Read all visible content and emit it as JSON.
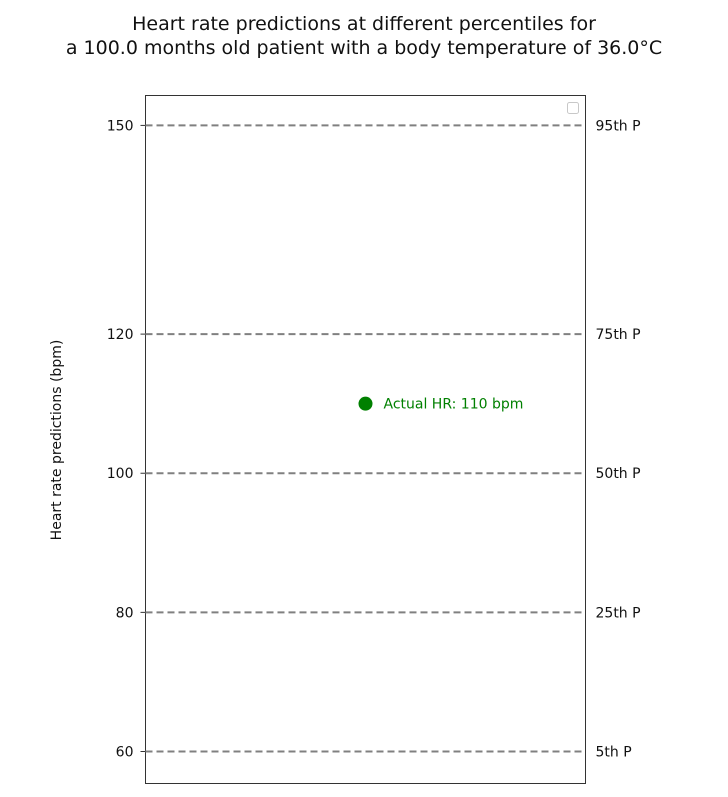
{
  "chart_data": {
    "type": "scatter",
    "title_line1": "Heart rate predictions at different percentiles for",
    "title_line2": "a 100.0 months old patient with a body temperature of 36.0°C",
    "ylabel": "Heart rate predictions (bpm)",
    "xlabel": "",
    "ylim": [
      55.4,
      154.3
    ],
    "grid": false,
    "yticks": [
      60,
      80,
      100,
      120,
      150
    ],
    "percentile_lines": [
      {
        "label": "5th P",
        "value": 60
      },
      {
        "label": "25th P",
        "value": 80
      },
      {
        "label": "50th P",
        "value": 100
      },
      {
        "label": "75th P",
        "value": 120
      },
      {
        "label": "95th P",
        "value": 150
      }
    ],
    "actual_point": {
      "label": "Actual HR: 110 bpm",
      "y": 110,
      "color": "#008000"
    },
    "line_color": "#808080",
    "legend": "top-right (empty)"
  }
}
